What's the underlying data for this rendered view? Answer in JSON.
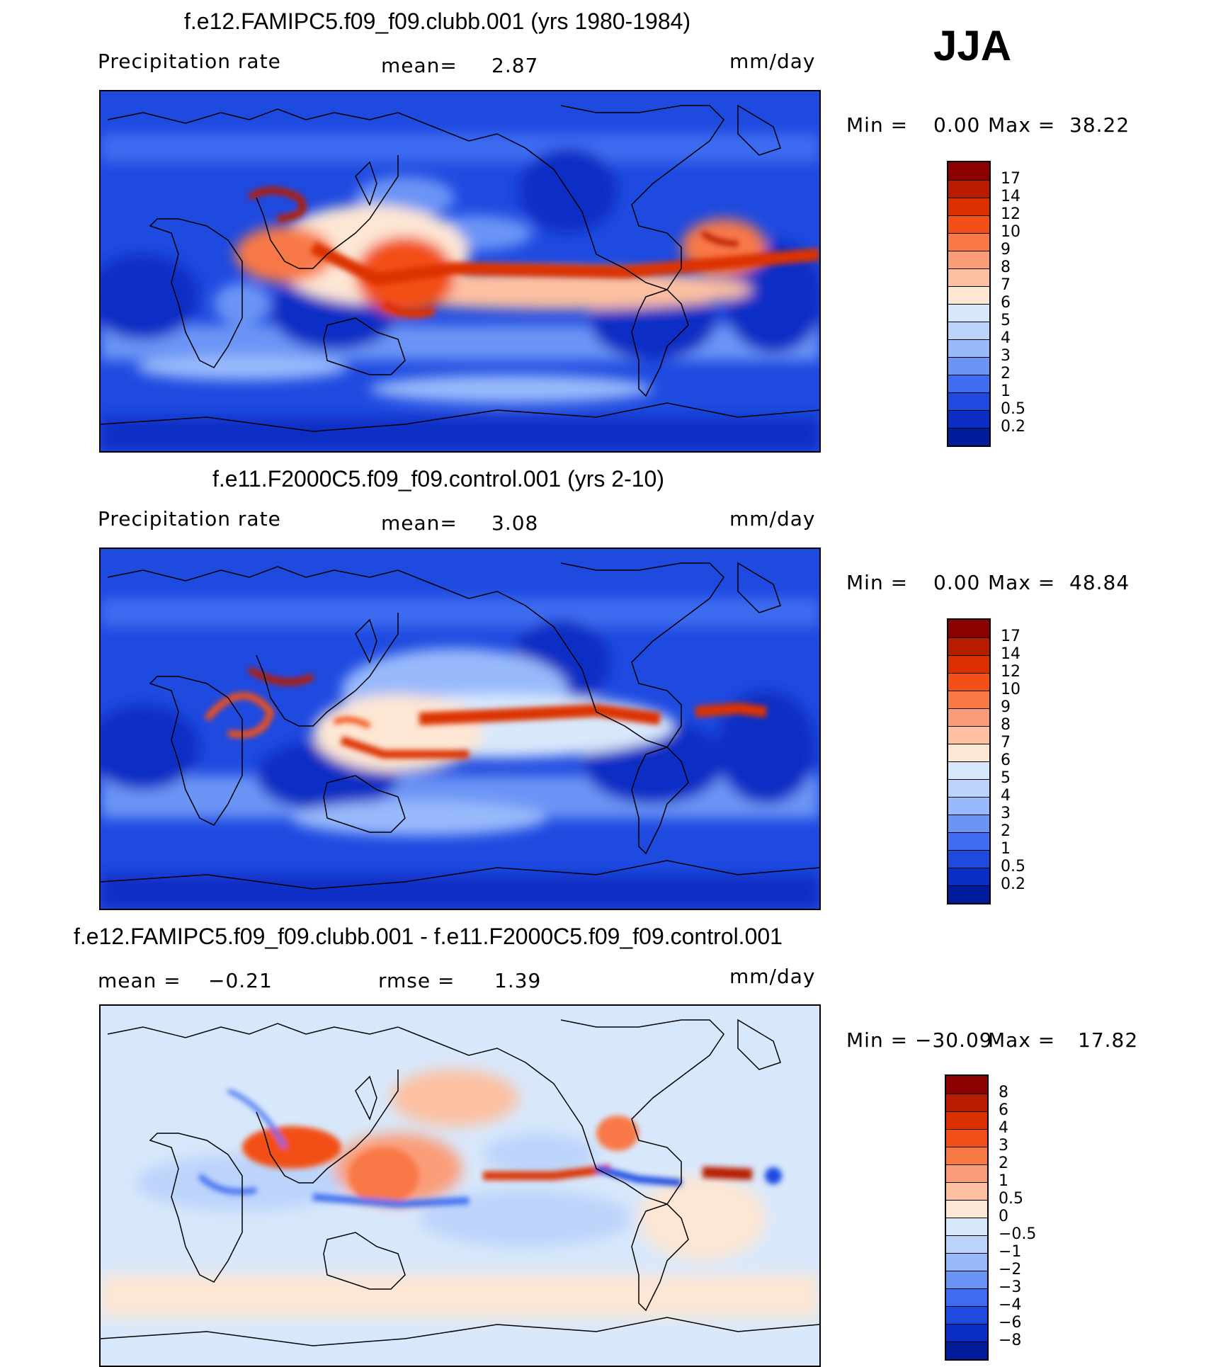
{
  "season": "JJA",
  "panels": [
    {
      "title": "f.e12.FAMIPC5.f09_f09.clubb.001 (yrs 1980-1984)",
      "left_label": "Precipitation rate",
      "mean_label": "mean=",
      "mean_value": "2.87",
      "units": "mm/day",
      "min_label": "Min =",
      "min_value": "0.00",
      "max_label": "Max =",
      "max_value": "38.22",
      "levels": [
        "17",
        "14",
        "12",
        "10",
        "9",
        "8",
        "7",
        "6",
        "5",
        "4",
        "3",
        "2",
        "1",
        "0.5",
        "0.2"
      ],
      "colors": [
        "#8b0000",
        "#b71c00",
        "#dc3000",
        "#f25018",
        "#f87846",
        "#fb9c78",
        "#fdc0a0",
        "#fde6d4",
        "#d8e8fb",
        "#bcd4fb",
        "#98b9fb",
        "#6b94f5",
        "#3e6cf0",
        "#1f4ae0",
        "#0a2ec4",
        "#001c9a"
      ]
    },
    {
      "title": "f.e11.F2000C5.f09_f09.control.001 (yrs 2-10)",
      "left_label": "Precipitation rate",
      "mean_label": "mean=",
      "mean_value": "3.08",
      "units": "mm/day",
      "min_label": "Min =",
      "min_value": "0.00",
      "max_label": "Max =",
      "max_value": "48.84",
      "levels": [
        "17",
        "14",
        "12",
        "10",
        "9",
        "8",
        "7",
        "6",
        "5",
        "4",
        "3",
        "2",
        "1",
        "0.5",
        "0.2"
      ],
      "colors": [
        "#8b0000",
        "#b71c00",
        "#dc3000",
        "#f25018",
        "#f87846",
        "#fb9c78",
        "#fdc0a0",
        "#fde6d4",
        "#d8e8fb",
        "#bcd4fb",
        "#98b9fb",
        "#6b94f5",
        "#3e6cf0",
        "#1f4ae0",
        "#0a2ec4",
        "#001c9a"
      ]
    },
    {
      "title": "f.e12.FAMIPC5.f09_f09.clubb.001 - f.e11.F2000C5.f09_f09.control.001",
      "left_label": "mean =",
      "mean_label": "rmse =",
      "left_value": "−0.21",
      "mean_value": "1.39",
      "units": "mm/day",
      "min_label": "Min =",
      "min_value": "−30.09",
      "max_label": "Max =",
      "max_value": "17.82",
      "levels": [
        "8",
        "6",
        "4",
        "3",
        "2",
        "1",
        "0.5",
        "0",
        "−0.5",
        "−1",
        "−2",
        "−3",
        "−4",
        "−6",
        "−8"
      ],
      "colors": [
        "#8b0000",
        "#b71c00",
        "#dc3000",
        "#f25018",
        "#f87846",
        "#fb9c78",
        "#fdc0a0",
        "#fde6d4",
        "#d8e8fb",
        "#bcd4fb",
        "#98b9fb",
        "#6b94f5",
        "#3e6cf0",
        "#1f4ae0",
        "#0a2ec4",
        "#001c9a"
      ]
    }
  ]
}
